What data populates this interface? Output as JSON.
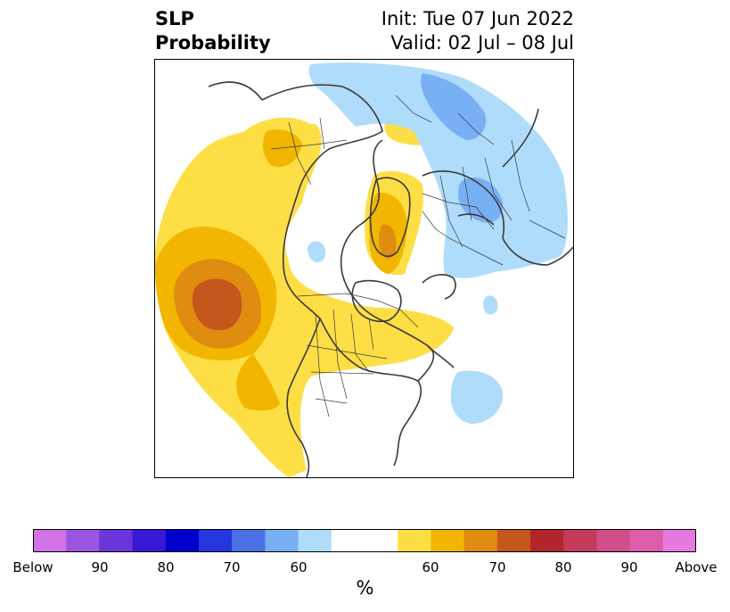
{
  "title": {
    "left_line1": "SLP",
    "left_line2": "Probability",
    "right_line1": "Init: Tue 07 Jun 2022",
    "right_line2": "Valid: 02 Jul – 08 Jul"
  },
  "map": {
    "projection": "north-polar-stereographic",
    "features": [
      "coastlines",
      "country-borders",
      "us-state-borders",
      "canada-province-borders"
    ],
    "anomaly_regions": [
      {
        "name": "north-pacific-above",
        "category": "Above",
        "peak_percent": 75
      },
      {
        "name": "east-siberia-above",
        "category": "Above",
        "peak_percent": 70
      },
      {
        "name": "greenland-arctic-above",
        "category": "Above",
        "peak_percent": 60
      },
      {
        "name": "canada-above",
        "category": "Above",
        "peak_percent": 60
      },
      {
        "name": "western-usa-above",
        "category": "Above",
        "peak_percent": 65
      },
      {
        "name": "eurasian-arctic-below",
        "category": "Below",
        "peak_percent": 60
      },
      {
        "name": "north-atlantic-below",
        "category": "Below",
        "peak_percent": 50
      }
    ]
  },
  "colorbar": {
    "colors": [
      "#d272e6",
      "#9b55e1",
      "#6a36d9",
      "#3919d5",
      "#0000cc",
      "#2436dc",
      "#4a72e6",
      "#78b0f3",
      "#afdcfb",
      "#ffffff",
      "#ffffff",
      "#fddf45",
      "#f2b600",
      "#df8c10",
      "#c4571b",
      "#b2252a",
      "#c43a5b",
      "#d04e89",
      "#dc5da9",
      "#e679e0"
    ],
    "tick_labels": [
      "Below",
      "90",
      "80",
      "70",
      "60",
      "60",
      "70",
      "80",
      "90",
      "Above"
    ],
    "unit": "%"
  }
}
